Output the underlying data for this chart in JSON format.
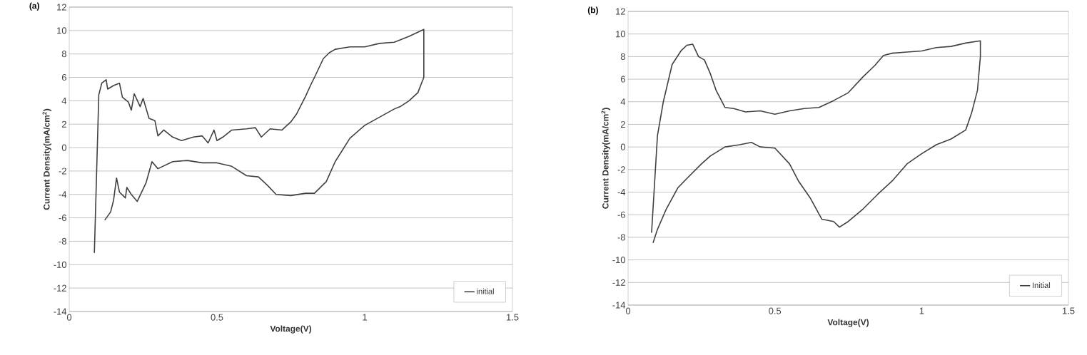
{
  "chart_data": [
    {
      "type": "line",
      "title": "(a)",
      "xlabel": "Voltage(V)",
      "ylabel": "Current Density(mA/cm$^{2}$)",
      "xlim": [
        0,
        1.5
      ],
      "ylim": [
        -14,
        12
      ],
      "xticks": [
        0,
        0.5,
        1,
        1.5
      ],
      "yticks": [
        -14,
        -12,
        -10,
        -8,
        -6,
        -4,
        -2,
        0,
        2,
        4,
        6,
        8,
        10,
        12
      ],
      "grid": "y",
      "legend": "bottom right",
      "series": [
        {
          "name": "initial",
          "color": "#404040",
          "x": [
            0.085,
            0.1,
            0.11,
            0.125,
            0.13,
            0.15,
            0.17,
            0.18,
            0.2,
            0.21,
            0.22,
            0.24,
            0.25,
            0.27,
            0.29,
            0.3,
            0.32,
            0.35,
            0.38,
            0.42,
            0.45,
            0.47,
            0.49,
            0.5,
            0.52,
            0.55,
            0.6,
            0.63,
            0.65,
            0.68,
            0.72,
            0.75,
            0.77,
            0.8,
            0.82,
            0.83,
            0.86,
            0.88,
            0.9,
            0.95,
            1.0,
            1.05,
            1.1,
            1.15,
            1.2,
            1.2,
            1.18,
            1.15,
            1.12,
            1.1,
            1.05,
            1.0,
            0.95,
            0.9,
            0.87,
            0.83,
            0.8,
            0.75,
            0.7,
            0.67,
            0.64,
            0.6,
            0.55,
            0.5,
            0.45,
            0.4,
            0.35,
            0.3,
            0.28,
            0.26,
            0.23,
            0.21,
            0.195,
            0.19,
            0.17,
            0.16,
            0.15,
            0.14,
            0.12
          ],
          "values": [
            -9,
            4.5,
            5.5,
            5.8,
            5,
            5.3,
            5.5,
            4.3,
            3.9,
            3.2,
            4.6,
            3.5,
            4.2,
            2.5,
            2.3,
            1,
            1.5,
            0.9,
            0.6,
            0.9,
            1,
            0.4,
            1.5,
            0.6,
            0.9,
            1.5,
            1.6,
            1.7,
            0.9,
            1.6,
            1.5,
            2.2,
            2.9,
            4.4,
            5.5,
            6,
            7.6,
            8.1,
            8.4,
            8.6,
            8.6,
            8.9,
            9.0,
            9.5,
            10.1,
            6,
            4.7,
            4,
            3.5,
            3.3,
            2.6,
            1.9,
            0.8,
            -1.2,
            -2.9,
            -3.9,
            -3.9,
            -4.1,
            -4,
            -3.2,
            -2.5,
            -2.4,
            -1.6,
            -1.3,
            -1.3,
            -1.1,
            -1.2,
            -1.8,
            -1.2,
            -3,
            -4.6,
            -4,
            -3.4,
            -4.3,
            -3.8,
            -2.6,
            -4.5,
            -5.5,
            -6.2
          ]
        }
      ]
    },
    {
      "type": "line",
      "title": "(b)",
      "xlabel": "Voltage(V)",
      "ylabel": "Current Density(mA/cm$^{2}$)",
      "xlim": [
        0,
        1.5
      ],
      "ylim": [
        -14,
        12
      ],
      "xticks": [
        0,
        0.5,
        1,
        1.5
      ],
      "yticks": [
        -14,
        -12,
        -10,
        -8,
        -6,
        -4,
        -2,
        0,
        2,
        4,
        6,
        8,
        10,
        12
      ],
      "grid": "y",
      "legend": "bottom right",
      "series": [
        {
          "name": "Initial",
          "color": "#404040",
          "x": [
            0.08,
            0.1,
            0.12,
            0.15,
            0.18,
            0.2,
            0.22,
            0.24,
            0.26,
            0.28,
            0.3,
            0.33,
            0.36,
            0.4,
            0.45,
            0.5,
            0.55,
            0.6,
            0.65,
            0.7,
            0.75,
            0.8,
            0.84,
            0.87,
            0.9,
            0.95,
            1.0,
            1.05,
            1.1,
            1.15,
            1.2,
            1.2,
            1.19,
            1.17,
            1.15,
            1.1,
            1.05,
            1.0,
            0.95,
            0.9,
            0.85,
            0.8,
            0.75,
            0.72,
            0.7,
            0.66,
            0.62,
            0.58,
            0.55,
            0.5,
            0.45,
            0.42,
            0.38,
            0.33,
            0.28,
            0.25,
            0.2,
            0.17,
            0.13,
            0.1,
            0.085
          ],
          "values": [
            -7.6,
            1,
            4,
            7.3,
            8.5,
            9,
            9.1,
            8,
            7.7,
            6.5,
            5,
            3.5,
            3.4,
            3.1,
            3.2,
            2.9,
            3.2,
            3.4,
            3.5,
            4.1,
            4.8,
            6.2,
            7.2,
            8.1,
            8.3,
            8.4,
            8.5,
            8.8,
            8.9,
            9.2,
            9.4,
            8,
            5,
            3,
            1.5,
            0.7,
            0.2,
            -0.6,
            -1.5,
            -3,
            -4.2,
            -5.5,
            -6.6,
            -7.1,
            -6.6,
            -6.4,
            -4.5,
            -3,
            -1.5,
            -0.1,
            0,
            0.4,
            0.2,
            0,
            -0.8,
            -1.5,
            -2.8,
            -3.6,
            -5.5,
            -7.3,
            -8.5
          ]
        }
      ]
    }
  ]
}
